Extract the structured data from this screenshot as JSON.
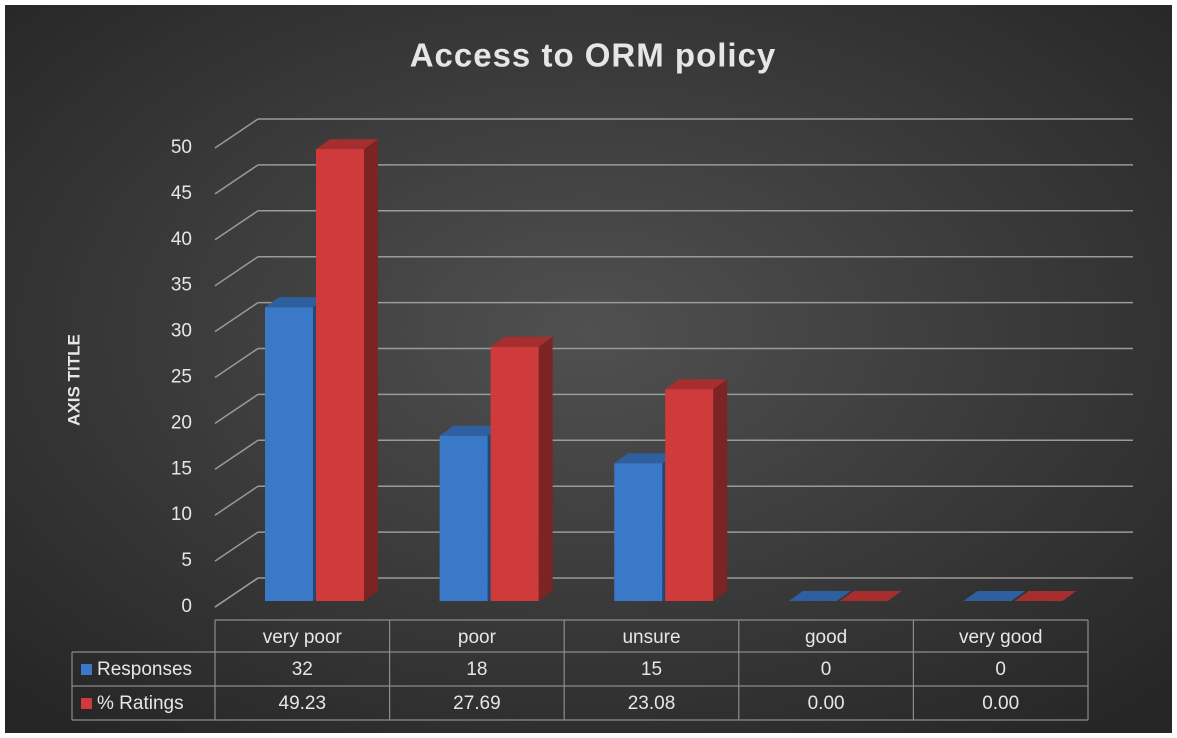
{
  "chart_data": {
    "type": "bar3d",
    "title": "Access to ORM policy",
    "y_label": "AXIS TITLE",
    "categories": [
      "very poor",
      "poor",
      "unsure",
      "good",
      "very good"
    ],
    "series": [
      {
        "name": "Responses",
        "color": "#3a78c8",
        "values": [
          32,
          18,
          15,
          0,
          0
        ]
      },
      {
        "name": "% Ratings",
        "color": "#cf3a3a",
        "values": [
          49.23,
          27.69,
          23.08,
          0,
          0
        ],
        "value_labels": [
          "49.23",
          "27.69",
          "23.08",
          "0.00",
          "0.00"
        ]
      }
    ],
    "ylim": [
      0,
      50
    ],
    "yticks": [
      0,
      5,
      10,
      15,
      20,
      25,
      30,
      35,
      40,
      45,
      50
    ],
    "grid": true
  }
}
